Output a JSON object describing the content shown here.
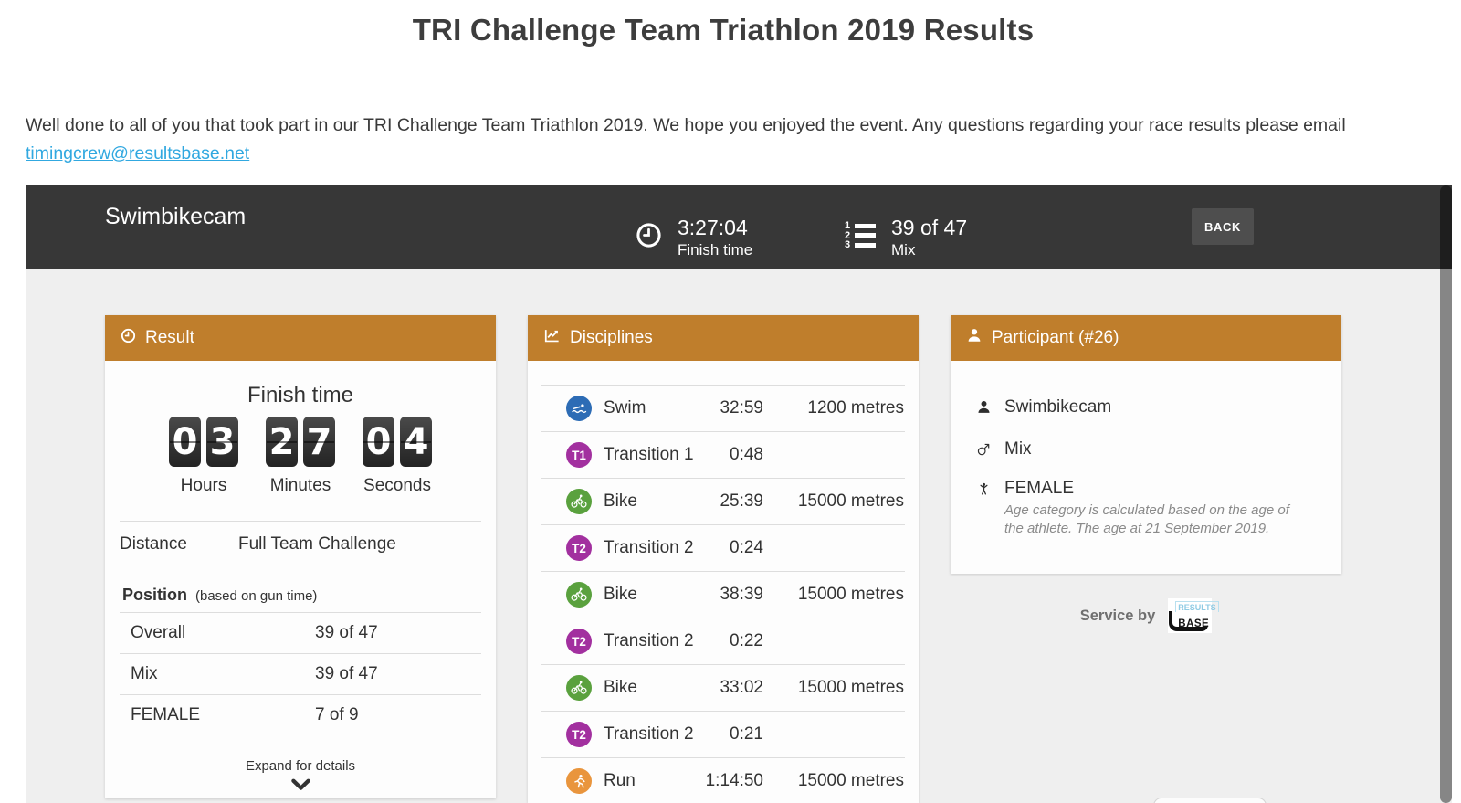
{
  "page": {
    "title": "TRI Challenge Team Triathlon 2019 Results",
    "intro_text": "Well done to all of you that took part in our TRI Challenge Team Triathlon 2019. We hope you enjoyed the event. Any questions regarding your race results please email",
    "intro_link": "timingcrew@resultsbase.net"
  },
  "header_bar": {
    "team_name": "Swimbikecam",
    "finish_time": "3:27:04",
    "finish_time_label": "Finish time",
    "position": "39 of 47",
    "position_label": "Mix",
    "back_label": "BACK"
  },
  "result_panel": {
    "title": "Result",
    "finish_time_heading": "Finish time",
    "clock": {
      "groups": [
        {
          "digits": "03",
          "label": "Hours"
        },
        {
          "digits": "27",
          "label": "Minutes"
        },
        {
          "digits": "04",
          "label": "Seconds"
        }
      ]
    },
    "distance_label": "Distance",
    "distance_value": "Full Team Challenge",
    "position_heading": "Position",
    "position_note": "(based on gun time)",
    "positions": [
      {
        "label": "Overall",
        "value": "39 of 47"
      },
      {
        "label": "Mix",
        "value": "39 of 47"
      },
      {
        "label": "FEMALE",
        "value": "7 of 9"
      }
    ],
    "expand_label": "Expand for details"
  },
  "disciplines_panel": {
    "title": "Disciplines",
    "rows": [
      {
        "icon": "swim-icon",
        "color": "#2d6cb5",
        "name": "Swim",
        "time": "32:59",
        "distance": "1200 metres"
      },
      {
        "icon": "transition-badge-icon",
        "badge": "T1",
        "color": "#a2309f",
        "name": "Transition 1",
        "time": "0:48",
        "distance": ""
      },
      {
        "icon": "bike-icon",
        "color": "#5aa13e",
        "name": "Bike",
        "time": "25:39",
        "distance": "15000 metres"
      },
      {
        "icon": "transition-badge-icon",
        "badge": "T2",
        "color": "#a2309f",
        "name": "Transition 2",
        "time": "0:24",
        "distance": ""
      },
      {
        "icon": "bike-icon",
        "color": "#5aa13e",
        "name": "Bike",
        "time": "38:39",
        "distance": "15000 metres"
      },
      {
        "icon": "transition-badge-icon",
        "badge": "T2",
        "color": "#a2309f",
        "name": "Transition 2",
        "time": "0:22",
        "distance": ""
      },
      {
        "icon": "bike-icon",
        "color": "#5aa13e",
        "name": "Bike",
        "time": "33:02",
        "distance": "15000 metres"
      },
      {
        "icon": "transition-badge-icon",
        "badge": "T2",
        "color": "#a2309f",
        "name": "Transition 2",
        "time": "0:21",
        "distance": ""
      },
      {
        "icon": "run-icon",
        "color": "#e9953d",
        "name": "Run",
        "time": "1:14:50",
        "distance": "15000 metres"
      }
    ]
  },
  "participant_panel": {
    "title": "Participant (#26)",
    "rows": [
      {
        "icon": "user-icon",
        "text": "Swimbikecam"
      },
      {
        "icon": "gender-mix-icon",
        "text": "Mix"
      },
      {
        "icon": "child-icon",
        "text": "FEMALE",
        "note": "Age category is calculated based on the age of the athlete. The age at 21 September 2019."
      }
    ]
  },
  "footer": {
    "service_by": "Service by",
    "logo_top": "RESULTS",
    "logo_bottom": "BASE"
  },
  "colors": {
    "accent_orange": "#bf7e2c",
    "topbar_dark": "#373737",
    "link_blue": "#31a8e0",
    "swim_blue": "#2d6cb5",
    "transition_purple": "#a2309f",
    "bike_green": "#5aa13e",
    "run_orange": "#e9953d"
  }
}
